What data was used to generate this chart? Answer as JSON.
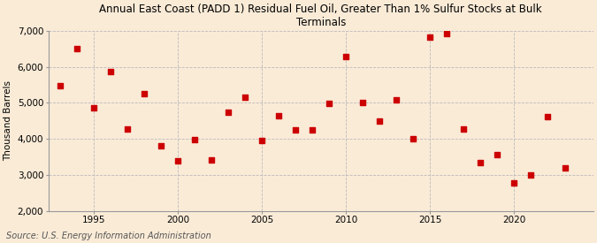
{
  "title": "Annual East Coast (PADD 1) Residual Fuel Oil, Greater Than 1% Sulfur Stocks at Bulk\nTerminals",
  "ylabel": "Thousand Barrels",
  "source": "Source: U.S. Energy Information Administration",
  "background_color": "#faebd7",
  "ylim": [
    2000,
    7000
  ],
  "yticks": [
    2000,
    3000,
    4000,
    5000,
    6000,
    7000
  ],
  "xlim": [
    1992.3,
    2024.7
  ],
  "xticks": [
    1995,
    2000,
    2005,
    2010,
    2015,
    2020
  ],
  "years": [
    1993,
    1994,
    1995,
    1996,
    1997,
    1998,
    1999,
    2000,
    2001,
    2002,
    2003,
    2004,
    2005,
    2006,
    2007,
    2008,
    2009,
    2010,
    2011,
    2012,
    2013,
    2014,
    2015,
    2016,
    2017,
    2018,
    2019,
    2020,
    2021,
    2022,
    2023
  ],
  "values": [
    5480,
    6510,
    4870,
    5870,
    4270,
    5260,
    3800,
    3380,
    3990,
    3420,
    4740,
    5160,
    3960,
    4640,
    4240,
    4240,
    4980,
    6290,
    5010,
    4490,
    5080,
    4010,
    6820,
    6930,
    4270,
    3330,
    3560,
    2790,
    3000,
    4620,
    3200
  ],
  "marker_color": "#cc0000",
  "marker_size": 4,
  "grid_color": "#bbbbbb",
  "title_fontsize": 8.5,
  "axis_fontsize": 7.5,
  "tick_fontsize": 7.5,
  "source_fontsize": 7
}
